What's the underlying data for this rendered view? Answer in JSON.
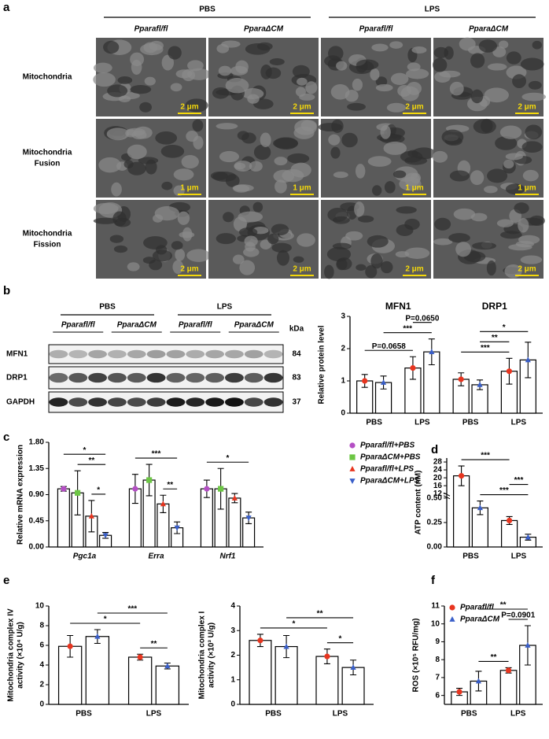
{
  "panels": [
    "a",
    "b",
    "c",
    "d",
    "e",
    "f"
  ],
  "em": {
    "groups": [
      "PBS",
      "LPS"
    ],
    "genotypes": [
      "Pparafl/fl",
      "PparaΔCM",
      "Pparafl/fl",
      "PparaΔCM"
    ],
    "rows": [
      [
        "Mitochondria"
      ],
      [
        "Mitochondria",
        "Fusion"
      ],
      [
        "Mitochondria",
        "Fission"
      ]
    ],
    "scale_bars": [
      [
        "2 μm",
        "2 μm",
        "2 μm",
        "2 μm"
      ],
      [
        "1 μm",
        "1 μm",
        "1 μm",
        "1 μm"
      ],
      [
        "2 μm",
        "2 μm",
        "2 μm",
        "2 μm"
      ]
    ]
  },
  "blot": {
    "groups": [
      "PBS",
      "LPS"
    ],
    "genotypes": [
      "Pparafl/fl",
      "PparaΔCM",
      "Pparafl/fl",
      "PparaΔCM"
    ],
    "unit": "kDa",
    "proteins": [
      "MFN1",
      "DRP1",
      "GAPDH"
    ],
    "sizes": [
      84,
      83,
      37
    ]
  },
  "chart_data": [
    {
      "type": "bar",
      "ylabel": [
        "Relative  protein level"
      ],
      "categories": [
        "PBS",
        "LPS",
        "PBS",
        "LPS"
      ],
      "group_labels": [
        "MFN1",
        "DRP1"
      ],
      "series": [
        {
          "color": "#e8351f",
          "marker": "circle",
          "values": [
            1.0,
            1.4,
            1.05,
            1.3
          ],
          "errors": [
            0.2,
            0.35,
            0.2,
            0.4
          ]
        },
        {
          "color": "#3a5fc9",
          "marker": "triangle",
          "values": [
            0.95,
            1.9,
            0.88,
            1.65
          ],
          "errors": [
            0.2,
            0.4,
            0.15,
            0.55
          ]
        }
      ],
      "ylim": [
        0,
        3
      ],
      "yticks": [
        0,
        1,
        2,
        3
      ],
      "annotations": [
        {
          "text": "P=0.0658",
          "between": [
            [
              0,
              0
            ],
            [
              1,
              0
            ]
          ]
        },
        {
          "text": "***",
          "between": [
            [
              0,
              1
            ],
            [
              1,
              1
            ]
          ]
        },
        {
          "text": "P=0.0650",
          "between": [
            [
              1,
              0
            ],
            [
              1,
              1
            ]
          ]
        },
        {
          "text": "***",
          "between": [
            [
              2,
              0
            ],
            [
              3,
              0
            ]
          ]
        },
        {
          "text": "**",
          "between": [
            [
              2,
              1
            ],
            [
              3,
              0
            ]
          ]
        },
        {
          "text": "*",
          "between": [
            [
              2,
              1
            ],
            [
              3,
              1
            ]
          ]
        }
      ]
    },
    {
      "type": "bar",
      "ylabel": [
        "Relative mRNA expression"
      ],
      "italic_categories": true,
      "categories": [
        "Pgc1a",
        "Erra",
        "Nrf1"
      ],
      "legend": "right",
      "series": [
        {
          "name": "Pparafl/fl+PBS",
          "color": "#b44fc4",
          "marker": "circle",
          "values": [
            1.0,
            1.0,
            1.0
          ],
          "errors": [
            0.04,
            0.25,
            0.15
          ]
        },
        {
          "name": "PparaΔCM+PBS",
          "color": "#6cc644",
          "marker": "square",
          "values": [
            0.93,
            1.15,
            1.0
          ],
          "errors": [
            0.38,
            0.27,
            0.35
          ]
        },
        {
          "name": "Pparafl/fl+LPS",
          "color": "#e8351f",
          "marker": "triangle",
          "values": [
            0.53,
            0.74,
            0.84
          ],
          "errors": [
            0.27,
            0.15,
            0.08
          ]
        },
        {
          "name": "PparaΔCM+LPS",
          "color": "#3a5fc9",
          "marker": "triangle-down",
          "values": [
            0.2,
            0.33,
            0.5
          ],
          "errors": [
            0.05,
            0.1,
            0.1
          ]
        }
      ],
      "ylim": [
        0,
        1.8
      ],
      "yticks": [
        {
          "value": 0,
          "label": "0.00"
        },
        {
          "value": 0.45,
          "label": "0.45"
        },
        {
          "value": 0.9,
          "label": "0.90"
        },
        {
          "value": 1.35,
          "label": "1.35"
        },
        {
          "value": 1.8,
          "label": "1.80"
        }
      ],
      "annotations": [
        {
          "text": "*",
          "between": [
            [
              0,
              2
            ],
            [
              0,
              3
            ]
          ]
        },
        {
          "text": "**",
          "between": [
            [
              0,
              1
            ],
            [
              0,
              3
            ]
          ]
        },
        {
          "text": "*",
          "between": [
            [
              0,
              0
            ],
            [
              0,
              3
            ]
          ]
        },
        {
          "text": "**",
          "between": [
            [
              1,
              2
            ],
            [
              1,
              3
            ]
          ]
        },
        {
          "text": "***",
          "between": [
            [
              1,
              0
            ],
            [
              1,
              3
            ]
          ]
        },
        {
          "text": "*",
          "between": [
            [
              2,
              0
            ],
            [
              2,
              3
            ]
          ]
        }
      ]
    },
    {
      "type": "bar",
      "ylabel": [
        "ATP content (nM)"
      ],
      "categories": [
        "PBS",
        "LPS"
      ],
      "series": [
        {
          "color": "#e8351f",
          "marker": "circle",
          "values": [
            21,
            0.27
          ],
          "errors": [
            5,
            0.04
          ]
        },
        {
          "color": "#3a5fc9",
          "marker": "triangle",
          "values": [
            0.4,
            0.1
          ],
          "errors": [
            0.07,
            0.03
          ]
        }
      ],
      "ylim": [
        0,
        30
      ],
      "ybreak": [
        0.5,
        12
      ],
      "yticks": [
        {
          "value": 0,
          "label": "0.00"
        },
        {
          "value": 0.25,
          "label": "0.25"
        },
        {
          "value": 0.5,
          "label": "0.50"
        },
        12,
        16,
        20,
        24,
        28
      ],
      "annotations": [
        {
          "text": "***",
          "between": [
            [
              0,
              1
            ],
            [
              1,
              1
            ]
          ]
        },
        {
          "text": "***",
          "between": [
            [
              1,
              0
            ],
            [
              1,
              1
            ]
          ]
        },
        {
          "text": "***",
          "between": [
            [
              0,
              0
            ],
            [
              1,
              0
            ]
          ]
        }
      ]
    },
    {
      "type": "bar",
      "ylabel": [
        "Mitochondria complex IV",
        "activity (×10⁴ U/g)"
      ],
      "categories": [
        "PBS",
        "LPS"
      ],
      "series": [
        {
          "color": "#e8351f",
          "marker": "circle",
          "values": [
            5.9,
            4.8
          ],
          "errors": [
            1.1,
            0.3
          ]
        },
        {
          "color": "#3a5fc9",
          "marker": "triangle",
          "values": [
            6.9,
            3.9
          ],
          "errors": [
            0.7,
            0.3
          ]
        }
      ],
      "ylim": [
        0,
        10
      ],
      "yticks": [
        0,
        2,
        4,
        6,
        8,
        10
      ],
      "annotations": [
        {
          "text": "**",
          "between": [
            [
              1,
              0
            ],
            [
              1,
              1
            ]
          ]
        },
        {
          "text": "*",
          "between": [
            [
              0,
              0
            ],
            [
              1,
              0
            ]
          ]
        },
        {
          "text": "***",
          "between": [
            [
              0,
              1
            ],
            [
              1,
              1
            ]
          ]
        }
      ]
    },
    {
      "type": "bar",
      "ylabel": [
        "Mitochondria complex I",
        "activity (×10³ U/g)"
      ],
      "categories": [
        "PBS",
        "LPS"
      ],
      "series": [
        {
          "color": "#e8351f",
          "marker": "circle",
          "values": [
            2.6,
            1.95
          ],
          "errors": [
            0.25,
            0.3
          ]
        },
        {
          "color": "#3a5fc9",
          "marker": "triangle",
          "values": [
            2.35,
            1.5
          ],
          "errors": [
            0.45,
            0.3
          ]
        }
      ],
      "ylim": [
        0,
        4
      ],
      "yticks": [
        0,
        1,
        2,
        3,
        4
      ],
      "annotations": [
        {
          "text": "*",
          "between": [
            [
              1,
              0
            ],
            [
              1,
              1
            ]
          ]
        },
        {
          "text": "*",
          "between": [
            [
              0,
              0
            ],
            [
              1,
              0
            ]
          ]
        },
        {
          "text": "**",
          "between": [
            [
              0,
              1
            ],
            [
              1,
              1
            ]
          ]
        }
      ]
    },
    {
      "type": "bar",
      "ylabel": [
        "ROS (×10⁵ RFU/mg)"
      ],
      "categories": [
        "PBS",
        "LPS"
      ],
      "legend": "upper left",
      "series": [
        {
          "name": "Pparafl/fl",
          "color": "#e8351f",
          "marker": "circle",
          "values": [
            6.2,
            7.4
          ],
          "errors": [
            0.2,
            0.15
          ]
        },
        {
          "name": "PparaΔCM",
          "color": "#3a5fc9",
          "marker": "triangle",
          "values": [
            6.8,
            8.8
          ],
          "errors": [
            0.55,
            1.1
          ]
        }
      ],
      "ylim": [
        5.5,
        11
      ],
      "yticks": [
        6,
        7,
        8,
        9,
        10,
        11
      ],
      "annotations": [
        {
          "text": "**",
          "between": [
            [
              0,
              1
            ],
            [
              1,
              0
            ]
          ]
        },
        {
          "text": "P=0.0901",
          "between": [
            [
              1,
              0
            ],
            [
              1,
              1
            ]
          ]
        },
        {
          "text": "**",
          "between": [
            [
              0,
              1
            ],
            [
              1,
              1
            ]
          ]
        }
      ]
    }
  ]
}
